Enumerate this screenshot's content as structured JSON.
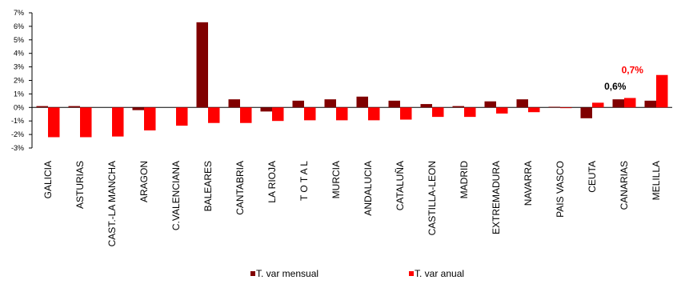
{
  "chart_data": {
    "type": "bar",
    "title": "",
    "xlabel": "",
    "ylabel": "",
    "ylim": [
      -3,
      7
    ],
    "y_ticks": [
      "-3%",
      "-2%",
      "-1%",
      "0%",
      "1%",
      "2%",
      "3%",
      "4%",
      "5%",
      "6%",
      "7%"
    ],
    "categories": [
      "GALICIA",
      "ASTURIAS",
      "CAST.-LA MANCHA",
      "ARAGON",
      "C.VALENCIANA",
      "BALEARES",
      "CANTABRIA",
      "LA RIOJA",
      "T O T A L",
      "MURCIA",
      "ANDALUCIA",
      "CATALUÑA",
      "CASTILLA-LEON",
      "MADRID",
      "EXTREMADURA",
      "NAVARRA",
      "PAIS VASCO",
      "CEUTA",
      "CANARIAS",
      "MELILLA"
    ],
    "series": [
      {
        "name": "T. var mensual",
        "color": "#800000",
        "values": [
          0.1,
          0.1,
          0.0,
          -0.2,
          0.0,
          6.3,
          0.6,
          -0.3,
          0.5,
          0.6,
          0.8,
          0.5,
          0.25,
          0.1,
          0.45,
          0.6,
          0.05,
          -0.8,
          0.6,
          0.5
        ]
      },
      {
        "name": "T. var anual",
        "color": "#ff0000",
        "values": [
          -2.2,
          -2.2,
          -2.15,
          -1.7,
          -1.35,
          -1.15,
          -1.15,
          -1.0,
          -0.95,
          -0.95,
          -0.95,
          -0.9,
          -0.7,
          -0.7,
          -0.45,
          -0.35,
          -0.05,
          0.35,
          0.7,
          2.4
        ]
      }
    ],
    "annotations": [
      {
        "text": "0,6%",
        "category": "CANARIAS",
        "series": "T. var mensual",
        "color": "#000000"
      },
      {
        "text": "0,7%",
        "category": "CANARIAS",
        "series": "T. var anual",
        "color": "#ff0000"
      }
    ],
    "grid": false,
    "legend_position": "bottom"
  }
}
